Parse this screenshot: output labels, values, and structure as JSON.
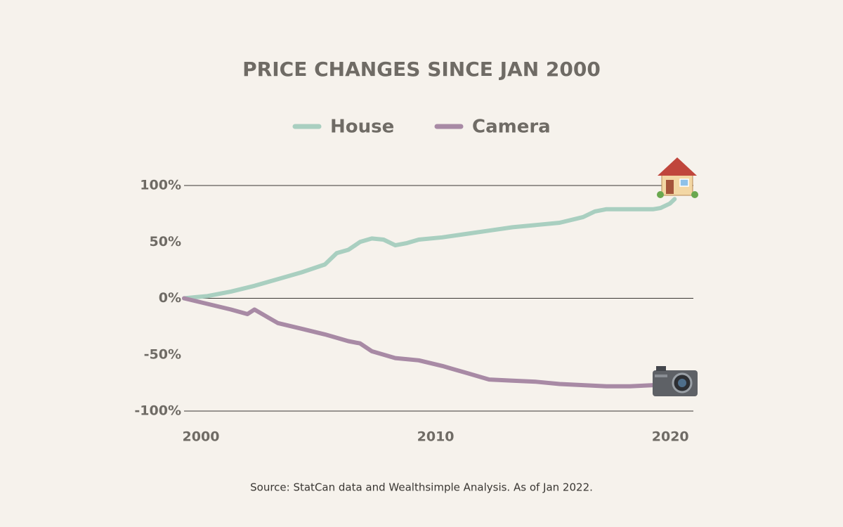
{
  "chart_data": {
    "type": "line",
    "title": "PRICE CHANGES SINCE JAN 2000",
    "source": "Source: StatCan data and Wealthsimple Analysis. As of Jan 2022.",
    "xlim": [
      2000,
      2021.7
    ],
    "xticks": [
      2000,
      2010,
      2020
    ],
    "ylim": [
      -100,
      100
    ],
    "yticks": [
      {
        "value": -100,
        "label": "-100%"
      },
      {
        "value": -50,
        "label": "-50%"
      },
      {
        "value": 0,
        "label": "0%"
      },
      {
        "value": 50,
        "label": "50%"
      },
      {
        "value": 100,
        "label": "100%"
      }
    ],
    "grid_values": [
      -100,
      0,
      100
    ],
    "series": [
      {
        "name": "House",
        "color": "#a9cfc0",
        "x": [
          2000,
          2000.5,
          2001,
          2002,
          2003,
          2004,
          2005,
          2006,
          2006.5,
          2007,
          2007.5,
          2008,
          2008.5,
          2009,
          2009.5,
          2010,
          2011,
          2012,
          2013,
          2014,
          2015,
          2016,
          2017,
          2017.5,
          2018,
          2019,
          2020,
          2020.3,
          2020.7,
          2020.9
        ],
        "values": [
          0,
          1,
          2,
          6,
          11,
          17,
          23,
          30,
          40,
          43,
          50,
          53,
          52,
          47,
          49,
          52,
          54,
          57,
          60,
          63,
          65,
          67,
          72,
          77,
          79,
          79,
          79,
          80,
          84,
          88
        ]
      },
      {
        "name": "Camera",
        "color": "#a88aa5",
        "x": [
          2000,
          2001,
          2002,
          2002.7,
          2003,
          2003.5,
          2004,
          2005,
          2006,
          2007,
          2007.5,
          2008,
          2009,
          2010,
          2011,
          2011.5,
          2012,
          2013,
          2014,
          2015,
          2016,
          2017,
          2018,
          2019,
          2020,
          2020.9
        ],
        "values": [
          0,
          -5,
          -10,
          -14,
          -10,
          -16,
          -22,
          -27,
          -32,
          -38,
          -40,
          -47,
          -53,
          -55,
          -60,
          -63,
          -66,
          -72,
          -73,
          -74,
          -76,
          -77,
          -78,
          -78,
          -77,
          -77
        ]
      }
    ]
  }
}
